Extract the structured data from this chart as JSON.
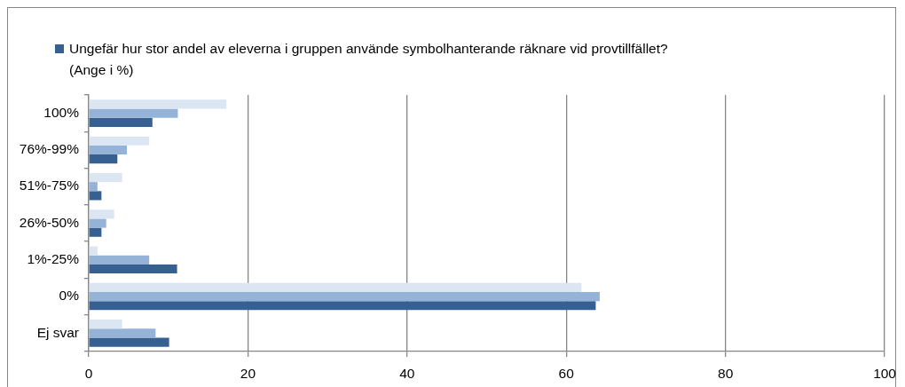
{
  "chart_data": {
    "type": "bar",
    "orientation": "horizontal",
    "categories": [
      "100%",
      "76%-99%",
      "51%-75%",
      "26%-50%",
      "1%-25%",
      "0%",
      "Ej svar"
    ],
    "series": [
      {
        "color": "#dce6f2",
        "values": [
          17.3,
          7.6,
          4.2,
          3.2,
          1.1,
          61.9,
          4.2
        ]
      },
      {
        "color": "#95b3d7",
        "values": [
          11.2,
          4.8,
          1.1,
          2.2,
          7.6,
          64.2,
          8.4
        ]
      },
      {
        "name": "Ungefär hur stor andel av eleverna i gruppen använde symbolhanterande räknare vid provtillfället? (Ange i %)",
        "color": "#376092",
        "values": [
          8.0,
          3.6,
          1.6,
          1.6,
          11.1,
          63.7,
          10.1
        ]
      }
    ],
    "xlim": [
      0,
      100
    ],
    "xticks": [
      0,
      20,
      40,
      60,
      80,
      100
    ],
    "grid": "x",
    "legend": "top"
  }
}
